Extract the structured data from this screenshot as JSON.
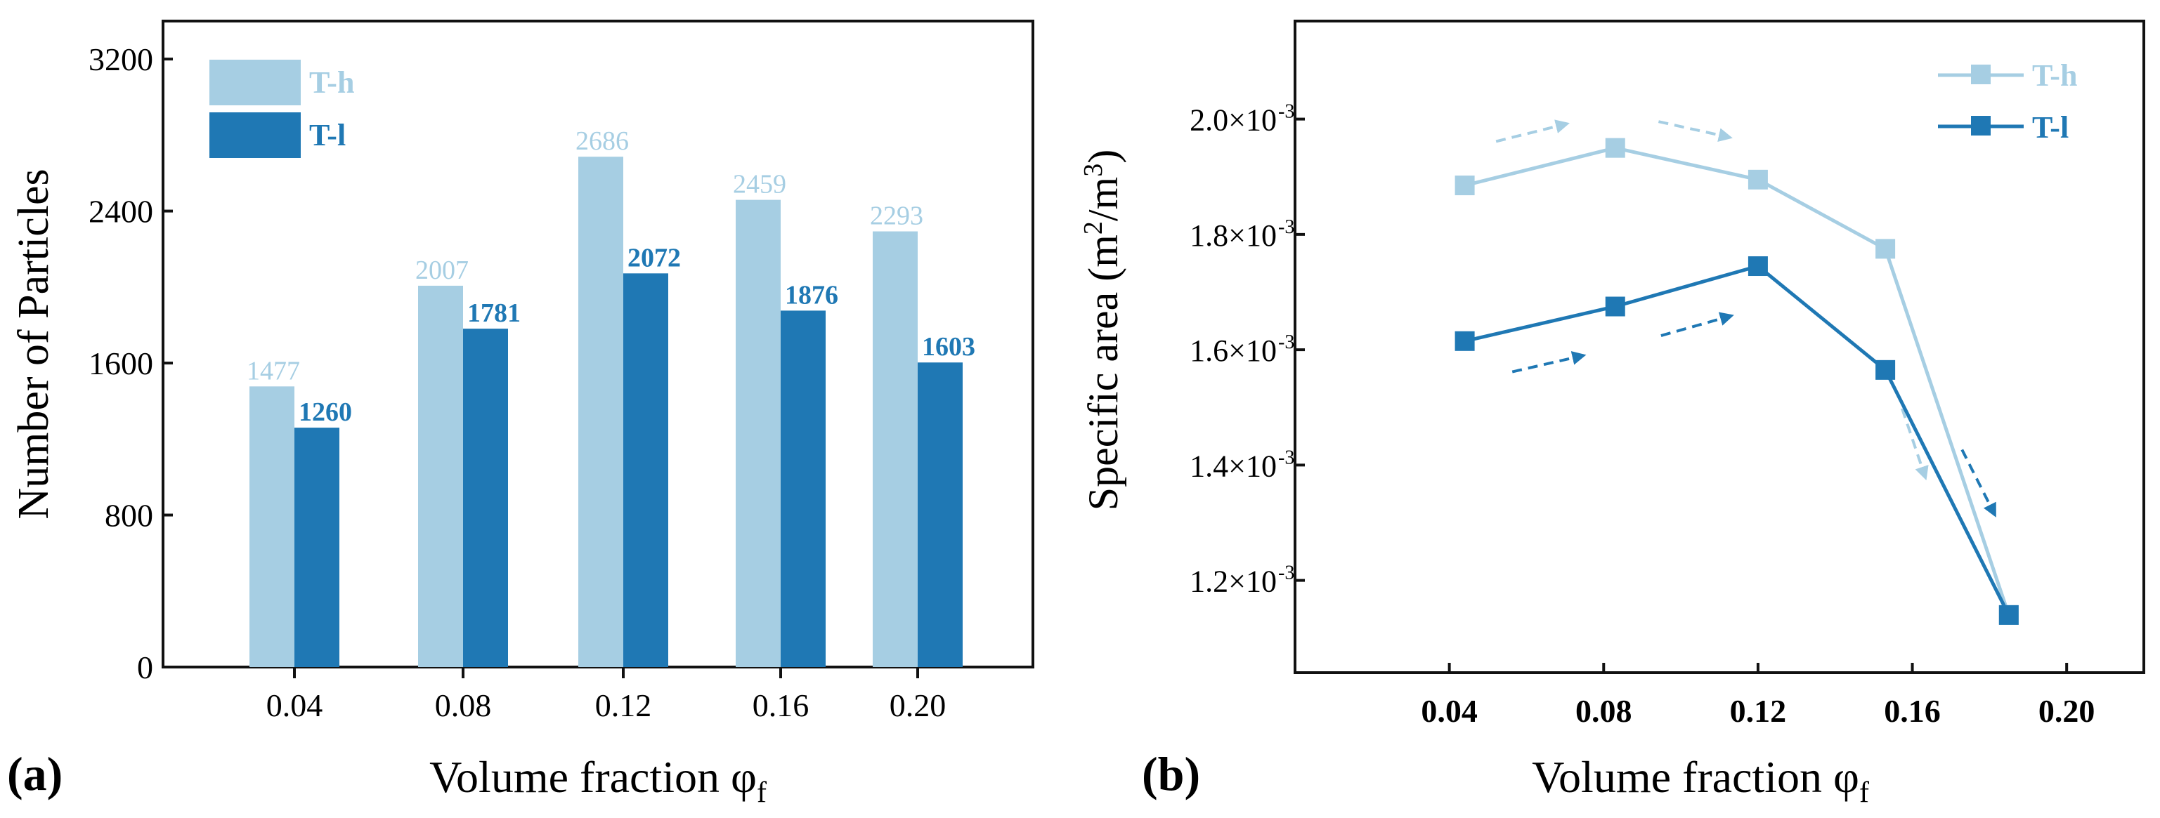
{
  "panels": {
    "a": {
      "label": "(a)"
    },
    "b": {
      "label": "(b)"
    }
  },
  "colors": {
    "T-h": "#a6cee3",
    "T-l": "#1f78b4",
    "axis": "#111111"
  },
  "chart_data": [
    {
      "type": "bar",
      "panel": "(a)",
      "xlabel": "Volume fraction φ",
      "xlabel_sub": "f",
      "ylabel": "Number of Particles",
      "categories": [
        "0.04",
        "0.08",
        "0.12",
        "0.16",
        "0.20"
      ],
      "ylim": [
        0,
        3400
      ],
      "yticks": [
        0,
        800,
        1600,
        2400,
        3200
      ],
      "ytick_labels": [
        "0",
        "800",
        "1600",
        "2400",
        "3200"
      ],
      "legend_position": "top-left",
      "series": [
        {
          "name": "T-h",
          "values": [
            1477,
            2007,
            2686,
            2459,
            2293
          ],
          "labels": [
            "1477",
            "2007",
            "2686",
            "2459",
            "2293"
          ]
        },
        {
          "name": "T-l",
          "values": [
            1260,
            1781,
            2072,
            1876,
            1603
          ],
          "labels": [
            "1260",
            "1781",
            "2072",
            "1876",
            "1603"
          ]
        }
      ]
    },
    {
      "type": "line",
      "panel": "(b)",
      "xlabel": "Volume fraction φ",
      "xlabel_sub": "f",
      "ylabel_pre": "Specific area (m",
      "ylabel_sup1": "2",
      "ylabel_mid": "/m",
      "ylabel_sup2": "3",
      "ylabel_post": ")",
      "xlim": [
        0.0,
        0.22
      ],
      "ylim": [
        1.04,
        2.17
      ],
      "xticks": [
        0.04,
        0.08,
        0.12,
        0.16,
        0.2
      ],
      "xtick_labels": [
        "0.04",
        "0.08",
        "0.12",
        "0.16",
        "0.20"
      ],
      "yticks": [
        1.2,
        1.4,
        1.6,
        1.8,
        2.0
      ],
      "ytick_labels": [
        "1.2×10",
        "1.4×10",
        "1.6×10",
        "1.8×10",
        "2.0×10"
      ],
      "ytick_exponent": "-3",
      "legend_position": "top-right",
      "series": [
        {
          "name": "T-h",
          "x": [
            0.044,
            0.083,
            0.12,
            0.153,
            0.185
          ],
          "y": [
            1.885,
            1.95,
            1.895,
            1.775,
            1.14
          ]
        },
        {
          "name": "T-l",
          "x": [
            0.044,
            0.083,
            0.12,
            0.153,
            0.185
          ],
          "y": [
            1.615,
            1.675,
            1.745,
            1.565,
            1.14
          ]
        }
      ]
    }
  ]
}
